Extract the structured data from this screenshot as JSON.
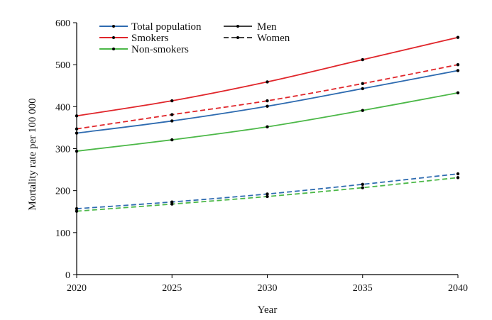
{
  "chart_data": {
    "type": "line",
    "title": "",
    "xlabel": "Year",
    "ylabel": "Mortality rate  per 100 000",
    "x": [
      2020,
      2025,
      2030,
      2035,
      2040
    ],
    "xticks": [
      "2020",
      "2025",
      "2030",
      "2035",
      "2040"
    ],
    "xlim": [
      2020,
      2040
    ],
    "ylim": [
      0,
      600
    ],
    "yticks": [
      "0",
      "100",
      "200",
      "300",
      "400",
      "500",
      "600"
    ],
    "grid": false,
    "legend_position": "top-left",
    "series": [
      {
        "name": "Total population - Men",
        "group": "Total population",
        "sex": "Men",
        "color": "#2e6bb0",
        "dash": "solid",
        "values": [
          337,
          366,
          401,
          443,
          486
        ]
      },
      {
        "name": "Total population - Women",
        "group": "Total population",
        "sex": "Women",
        "color": "#2e6bb0",
        "dash": "dashed",
        "values": [
          157,
          173,
          192,
          215,
          240
        ]
      },
      {
        "name": "Smokers - Men",
        "group": "Smokers",
        "sex": "Men",
        "color": "#e0262b",
        "dash": "solid",
        "values": [
          378,
          414,
          459,
          512,
          565
        ]
      },
      {
        "name": "Smokers - Women",
        "group": "Smokers",
        "sex": "Women",
        "color": "#e0262b",
        "dash": "dashed",
        "values": [
          347,
          381,
          414,
          455,
          500
        ]
      },
      {
        "name": "Non-smokers - Men",
        "group": "Non-smokers",
        "sex": "Men",
        "color": "#4cb848",
        "dash": "solid",
        "values": [
          294,
          321,
          352,
          391,
          433
        ]
      },
      {
        "name": "Non-smokers - Women",
        "group": "Non-smokers",
        "sex": "Women",
        "color": "#4cb848",
        "dash": "dashed",
        "values": [
          151,
          168,
          186,
          207,
          231
        ]
      }
    ],
    "legend": {
      "groups": [
        {
          "label": "Total population",
          "color": "#2e6bb0"
        },
        {
          "label": "Smokers",
          "color": "#e0262b"
        },
        {
          "label": "Non-smokers",
          "color": "#4cb848"
        }
      ],
      "styles": [
        {
          "label": "Men",
          "dash": "solid",
          "color": "#000000"
        },
        {
          "label": "Women",
          "dash": "dashed",
          "color": "#000000"
        }
      ]
    }
  }
}
